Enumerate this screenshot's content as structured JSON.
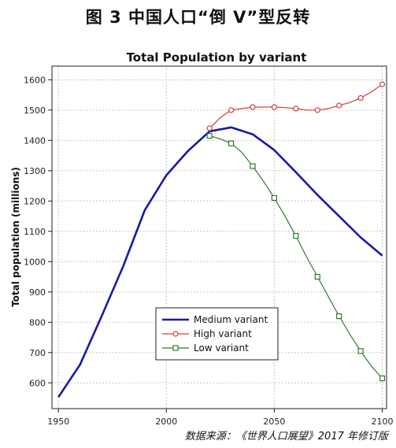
{
  "figure": {
    "title": "图 3  中国人口“倒 V”型反转",
    "source": "数据来源：《世界人口展望》2017 年修订版"
  },
  "chart_data": {
    "type": "line",
    "title": "Total Population by variant",
    "xlabel": "",
    "ylabel": "Total population (millions)",
    "xlim": [
      1947,
      2102
    ],
    "ylim": [
      515,
      1645
    ],
    "xticks": [
      1950,
      2000,
      2050,
      2100
    ],
    "yticks": [
      600,
      700,
      800,
      900,
      1000,
      1100,
      1200,
      1300,
      1400,
      1500,
      1600
    ],
    "grid": true,
    "legend_position": "center-bottom",
    "series": [
      {
        "name": "Medium variant",
        "color": "#1a1aa0",
        "marker": "none",
        "x": [
          1950,
          1960,
          1970,
          1980,
          1990,
          2000,
          2010,
          2020,
          2030,
          2040,
          2050,
          2060,
          2070,
          2080,
          2090,
          2100
        ],
        "values": [
          553,
          660,
          820,
          985,
          1170,
          1285,
          1365,
          1430,
          1443,
          1420,
          1368,
          1295,
          1220,
          1150,
          1080,
          1020
        ]
      },
      {
        "name": "High variant",
        "color": "#d04040",
        "marker": "circle",
        "x": [
          2020,
          2025,
          2030,
          2035,
          2040,
          2045,
          2050,
          2055,
          2060,
          2065,
          2070,
          2075,
          2080,
          2085,
          2090,
          2095,
          2100
        ],
        "values": [
          1440,
          1475,
          1500,
          1505,
          1510,
          1510,
          1510,
          1508,
          1505,
          1500,
          1500,
          1505,
          1515,
          1525,
          1540,
          1560,
          1585
        ]
      },
      {
        "name": "Low variant",
        "color": "#2e7a2e",
        "marker": "square",
        "x": [
          2020,
          2025,
          2030,
          2035,
          2040,
          2045,
          2050,
          2055,
          2060,
          2065,
          2070,
          2075,
          2080,
          2085,
          2090,
          2095,
          2100
        ],
        "values": [
          1415,
          1405,
          1390,
          1360,
          1315,
          1265,
          1210,
          1150,
          1085,
          1015,
          950,
          885,
          820,
          760,
          705,
          655,
          615
        ]
      }
    ]
  }
}
